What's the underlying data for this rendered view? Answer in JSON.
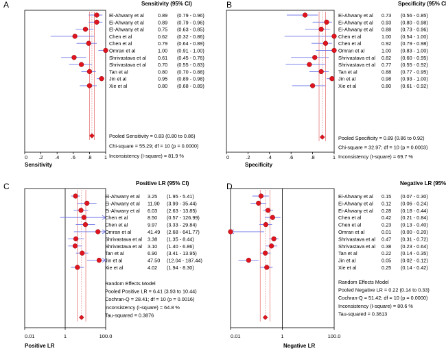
{
  "chart_data": [
    {
      "type": "forest",
      "panel_letter": "A",
      "title": "Sensitivity (95% CI)",
      "xlabel": "Sensitivity",
      "scale": "linear",
      "xlim": [
        0,
        1
      ],
      "ticks": [
        "0",
        ".2",
        ".4",
        ".6",
        ".8",
        "1"
      ],
      "studies": [
        {
          "name": "El-Ahwany et al",
          "est": 0.89,
          "lo": 0.79,
          "hi": 0.96,
          "text": "0.89",
          "ci": "(0.79 - 0.96)"
        },
        {
          "name": "Ei-Ahwany et al",
          "est": 0.89,
          "lo": 0.79,
          "hi": 0.96,
          "text": "0.89",
          "ci": "(0.79 - 0.96)"
        },
        {
          "name": "El-Ahwany et al",
          "est": 0.75,
          "lo": 0.63,
          "hi": 0.85,
          "text": "0.75",
          "ci": "(0.63 - 0.85)"
        },
        {
          "name": "Chen et al",
          "est": 0.62,
          "lo": 0.32,
          "hi": 0.86,
          "text": "0.62",
          "ci": "(0.32 - 0.86)"
        },
        {
          "name": "Chen et al",
          "est": 0.79,
          "lo": 0.64,
          "hi": 0.89,
          "text": "0.79",
          "ci": "(0.64 - 0.89)"
        },
        {
          "name": "Omran et al",
          "est": 1.0,
          "lo": 0.91,
          "hi": 1.0,
          "text": "1.00",
          "ci": "(0.91 - 1.00)"
        },
        {
          "name": "Shrivastava et al",
          "est": 0.61,
          "lo": 0.45,
          "hi": 0.76,
          "text": "0.61",
          "ci": "(0.45 - 0.76)"
        },
        {
          "name": "Shrivastava et al",
          "est": 0.7,
          "lo": 0.55,
          "hi": 0.83,
          "text": "0.70",
          "ci": "(0.55 - 0.83)"
        },
        {
          "name": "Tan et al",
          "est": 0.8,
          "lo": 0.7,
          "hi": 0.88,
          "text": "0.80",
          "ci": "(0.70 - 0.88)"
        },
        {
          "name": "Jin et al",
          "est": 0.95,
          "lo": 0.89,
          "hi": 0.98,
          "text": "0.95",
          "ci": "(0.89 - 0.98)"
        },
        {
          "name": "Xie et al",
          "est": 0.8,
          "lo": 0.68,
          "hi": 0.89,
          "text": "0.80",
          "ci": "(0.68 - 0.89)"
        }
      ],
      "pooled": {
        "est": 0.83,
        "lo": 0.8,
        "hi": 0.86
      },
      "summary_lines": [
        "Pooled Sensitivity = 0.83 (0.80 to 0.86)",
        "Chi-square = 55.29; df = 10 (p = 0.0000)",
        "Inconsistency (I-square) = 81.9 %"
      ]
    },
    {
      "type": "forest",
      "panel_letter": "B",
      "title": "Specificity (95% CI)",
      "xlabel": "Specificity",
      "scale": "linear",
      "xlim": [
        0,
        1
      ],
      "ticks": [
        "0",
        ".2",
        ".4",
        ".6",
        ".8",
        "1"
      ],
      "studies": [
        {
          "name": "Ei-Ahwany et al",
          "est": 0.73,
          "lo": 0.56,
          "hi": 0.85,
          "text": "0.73",
          "ci": "(0.56 - 0.85)"
        },
        {
          "name": "Ei-Ahwany et al",
          "est": 0.93,
          "lo": 0.8,
          "hi": 0.98,
          "text": "0.93",
          "ci": "(0.80 - 0.98)"
        },
        {
          "name": "Ei-Ahwany et al",
          "est": 0.88,
          "lo": 0.73,
          "hi": 0.96,
          "text": "0.88",
          "ci": "(0.73 - 0.96)"
        },
        {
          "name": "Chen et al",
          "est": 1.0,
          "lo": 0.54,
          "hi": 1.0,
          "text": "1.00",
          "ci": "(0.54 - 1.00)"
        },
        {
          "name": "Chen et al",
          "est": 0.92,
          "lo": 0.79,
          "hi": 0.98,
          "text": "0.92",
          "ci": "(0.79 - 0.98)"
        },
        {
          "name": "Omran et al",
          "est": 1.0,
          "lo": 0.83,
          "hi": 1.0,
          "text": "1.00",
          "ci": "(0.83 - 1.00)"
        },
        {
          "name": "Shrivastava et al",
          "est": 0.82,
          "lo": 0.6,
          "hi": 0.95,
          "text": "0.82",
          "ci": "(0.60 - 0.95)"
        },
        {
          "name": "Shrivastava et al",
          "est": 0.77,
          "lo": 0.55,
          "hi": 0.92,
          "text": "0.77",
          "ci": "(0.55 - 0.92)"
        },
        {
          "name": "Tan et al",
          "est": 0.88,
          "lo": 0.77,
          "hi": 0.95,
          "text": "0.88",
          "ci": "(0.77 - 0.95)"
        },
        {
          "name": "Jin et al",
          "est": 0.98,
          "lo": 0.93,
          "hi": 1.0,
          "text": "0.98",
          "ci": "(0.93 - 1.00)"
        },
        {
          "name": "Xie et al",
          "est": 0.8,
          "lo": 0.61,
          "hi": 0.92,
          "text": "0.80",
          "ci": "(0.61 - 0.92)"
        }
      ],
      "pooled": {
        "est": 0.89,
        "lo": 0.86,
        "hi": 0.92
      },
      "summary_lines": [
        "Pooled Specificity = 0.89 (0.86 to 0.92)",
        "Chi-square = 32.97; df = 10 (p = 0.0003)",
        "Inconsistency (I-square) = 69.7 %"
      ]
    },
    {
      "type": "forest",
      "panel_letter": "C",
      "title": "Positive LR (95% CI)",
      "xlabel": "Positive LR",
      "scale": "log",
      "xlim": [
        0.01,
        100
      ],
      "ticks": [
        "0.01",
        "1",
        "100.0"
      ],
      "ref_line": 1,
      "studies": [
        {
          "name": "Ei-Ahwany et al",
          "est": 3.25,
          "lo": 1.95,
          "hi": 5.41,
          "text": "3.25",
          "ci": "(1.95 - 5.41)"
        },
        {
          "name": "Ei-Ahwany et al",
          "est": 11.9,
          "lo": 3.99,
          "hi": 35.44,
          "text": "11.90",
          "ci": "(3.99 - 35.44)"
        },
        {
          "name": "Ei-Ahwany et al",
          "est": 6.03,
          "lo": 2.63,
          "hi": 13.85,
          "text": "6.03",
          "ci": "(2.63 - 13.85)"
        },
        {
          "name": "Chen et al",
          "est": 8.5,
          "lo": 0.57,
          "hi": 126.99,
          "text": "8.50",
          "ci": "(0.57 - 126.99)"
        },
        {
          "name": "Chen et al",
          "est": 9.97,
          "lo": 3.33,
          "hi": 29.84,
          "text": "9.97",
          "ci": "(3.33 - 29.84)"
        },
        {
          "name": "Omran et al",
          "est": 41.49,
          "lo": 2.68,
          "hi": 641.77,
          "text": "41.49",
          "ci": "(2.68 - 641.77)"
        },
        {
          "name": "Shrivastava et al",
          "est": 3.38,
          "lo": 1.35,
          "hi": 8.44,
          "text": "3.38",
          "ci": "(1.35 - 8.44)"
        },
        {
          "name": "Shrivastava et al",
          "est": 3.1,
          "lo": 1.4,
          "hi": 6.86,
          "text": "3.10",
          "ci": "(1.40 - 6.86)"
        },
        {
          "name": "Tan et al",
          "est": 6.9,
          "lo": 3.41,
          "hi": 13.95,
          "text": "6.90",
          "ci": "(3.41 - 13.95)"
        },
        {
          "name": "Jin et al",
          "est": 47.5,
          "lo": 12.04,
          "hi": 187.44,
          "text": "47.50",
          "ci": "(12.04 - 187.44)"
        },
        {
          "name": "Xie et al",
          "est": 4.02,
          "lo": 1.94,
          "hi": 8.3,
          "text": "4.02",
          "ci": "(1.94 - 8.30)"
        }
      ],
      "pooled": {
        "est": 6.41,
        "lo": 3.93,
        "hi": 10.44
      },
      "summary_lines": [
        "Random Effects Model",
        "Pooled Positive LR = 6.41 (3.93 to 10.44)",
        "Cochran-Q = 28.41; df = 10 (p = 0.0016)",
        "Inconsistency (I-square) = 64.8 %",
        "Tau-squared = 0.3876"
      ]
    },
    {
      "type": "forest",
      "panel_letter": "D",
      "title": "Negative LR (95% CI)",
      "xlabel": "Negative LR",
      "scale": "log",
      "xlim": [
        0.01,
        100
      ],
      "ticks": [
        "0.01",
        "1",
        "100.0"
      ],
      "ref_line": 1,
      "studies": [
        {
          "name": "Ei-Ahwany et al",
          "est": 0.15,
          "lo": 0.07,
          "hi": 0.3,
          "text": "0.15",
          "ci": "(0.07 - 0.30)"
        },
        {
          "name": "Ei-Ahwany et al",
          "est": 0.12,
          "lo": 0.06,
          "hi": 0.24,
          "text": "0.12",
          "ci": "(0.06 - 0.24)"
        },
        {
          "name": "Ei-Ahwany et al",
          "est": 0.28,
          "lo": 0.18,
          "hi": 0.44,
          "text": "0.28",
          "ci": "(0.18 - 0.44)"
        },
        {
          "name": "Chen et al",
          "est": 0.42,
          "lo": 0.21,
          "hi": 0.84,
          "text": "0.42",
          "ci": "(0.21 - 0.84)"
        },
        {
          "name": "Chen et al",
          "est": 0.23,
          "lo": 0.13,
          "hi": 0.4,
          "text": "0.23",
          "ci": "(0.13 - 0.40)"
        },
        {
          "name": "Omran et al",
          "est": 0.01,
          "lo": 0.0,
          "hi": 0.2,
          "text": "0.01",
          "ci": "(0.00 - 0.20)"
        },
        {
          "name": "Shrivastava et al",
          "est": 0.47,
          "lo": 0.31,
          "hi": 0.72,
          "text": "0.47",
          "ci": "(0.31 - 0.72)"
        },
        {
          "name": "Shrivastava et al",
          "est": 0.38,
          "lo": 0.23,
          "hi": 0.64,
          "text": "0.38",
          "ci": "(0.23 - 0.64)"
        },
        {
          "name": "Tan et al",
          "est": 0.22,
          "lo": 0.14,
          "hi": 0.35,
          "text": "0.22",
          "ci": "(0.14 - 0.35)"
        },
        {
          "name": "Jin et al",
          "est": 0.05,
          "lo": 0.02,
          "hi": 0.12,
          "text": "0.05",
          "ci": "(0.02 - 0.12)"
        },
        {
          "name": "Xie et al",
          "est": 0.25,
          "lo": 0.14,
          "hi": 0.42,
          "text": "0.25",
          "ci": "(0.14 - 0.42)"
        }
      ],
      "pooled": {
        "est": 0.22,
        "lo": 0.14,
        "hi": 0.33
      },
      "summary_lines": [
        "Random Effects Model",
        "Pooled Negative LR = 0.22 (0.14 to 0.33)",
        "Cochran-Q = 51.42; df = 10 (p = 0.0000)",
        "Inconsistency (I-square) = 80.6 %",
        "Tau-squared = 0.3613"
      ]
    }
  ],
  "colors": {
    "marker": "#e0141e",
    "marker_stroke": "#8a0a0e",
    "ci_line": "#7078e8",
    "pooled_band": "#e87878",
    "axis": "#000000"
  }
}
